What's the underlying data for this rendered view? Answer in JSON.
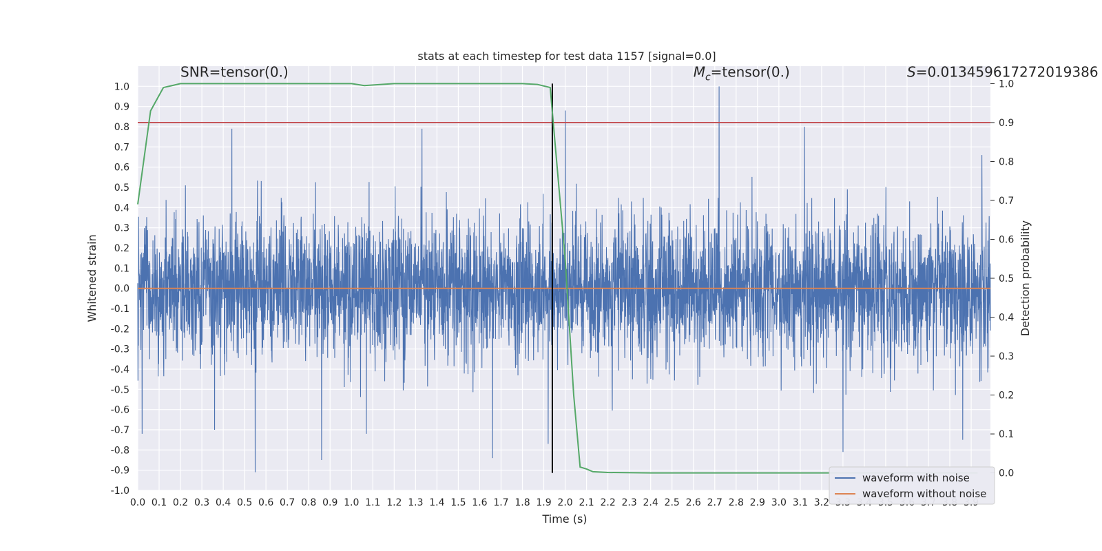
{
  "chart_data": {
    "type": "line",
    "title": "stats at each timestep for test data 1157 [signal=0.0]",
    "xlabel": "Time (s)",
    "ylabel_left": "Whitened strain",
    "ylabel_right": "Detection probability",
    "xlim": [
      0.0,
      3.99
    ],
    "ylim_left": [
      -1.0,
      1.1
    ],
    "ylim_right": [
      -0.045,
      1.045
    ],
    "grid": true,
    "x_ticks": [
      "0.0",
      "0.1",
      "0.2",
      "0.3",
      "0.4",
      "0.5",
      "0.6",
      "0.7",
      "0.8",
      "0.9",
      "1.0",
      "1.1",
      "1.2",
      "1.3",
      "1.4",
      "1.5",
      "1.6",
      "1.7",
      "1.8",
      "1.9",
      "2.0",
      "2.1",
      "2.2",
      "2.3",
      "2.4",
      "2.5",
      "2.6",
      "2.7",
      "2.8",
      "2.9",
      "3.0",
      "3.1",
      "3.2",
      "3.3",
      "3.4",
      "3.5",
      "3.6",
      "3.7",
      "3.8",
      "3.9"
    ],
    "y_left_ticks": [
      "-1.0",
      "-0.9",
      "-0.8",
      "-0.7",
      "-0.6",
      "-0.5",
      "-0.4",
      "-0.3",
      "-0.2",
      "-0.1",
      "0.0",
      "0.1",
      "0.2",
      "0.3",
      "0.4",
      "0.5",
      "0.6",
      "0.7",
      "0.8",
      "0.9",
      "1.0"
    ],
    "y_right_ticks": [
      "0.0",
      "0.1",
      "0.2",
      "0.3",
      "0.4",
      "0.5",
      "0.6",
      "0.7",
      "0.8",
      "0.9",
      "1.0"
    ],
    "series": [
      {
        "name": "waveform with noise",
        "axis": "left",
        "color": "#4c72b0",
        "kind": "noise",
        "samples": 4096,
        "peaks": [
          {
            "x": 0.44,
            "y": 0.79
          },
          {
            "x": 1.33,
            "y": 0.79
          },
          {
            "x": 2.0,
            "y": 0.88
          },
          {
            "x": 2.72,
            "y": 1.0
          },
          {
            "x": 3.12,
            "y": 0.8
          },
          {
            "x": 3.95,
            "y": 0.66
          },
          {
            "x": 0.55,
            "y": -0.91
          },
          {
            "x": 0.86,
            "y": -0.85
          },
          {
            "x": 1.66,
            "y": -0.84
          },
          {
            "x": 3.3,
            "y": -0.81
          },
          {
            "x": 3.86,
            "y": -0.75
          },
          {
            "x": 1.92,
            "y": -0.77
          },
          {
            "x": 0.02,
            "y": -0.72
          },
          {
            "x": 0.36,
            "y": -0.7
          },
          {
            "x": 1.07,
            "y": -0.72
          }
        ]
      },
      {
        "name": "waveform without noise",
        "axis": "left",
        "color": "#dd8452",
        "x": [
          0.0,
          3.99
        ],
        "y": [
          0.0,
          0.0
        ]
      },
      {
        "name": "detection probability",
        "axis": "right",
        "color": "#55a868",
        "x": [
          0.0,
          0.06,
          0.12,
          0.2,
          0.3,
          0.5,
          0.8,
          1.0,
          1.06,
          1.2,
          1.5,
          1.8,
          1.87,
          1.93,
          2.0,
          2.04,
          2.07,
          2.1,
          2.13,
          2.2,
          2.4,
          3.0,
          3.5,
          3.93
        ],
        "y": [
          0.69,
          0.93,
          0.99,
          1.0,
          1.0,
          1.0,
          1.0,
          1.0,
          0.995,
          1.0,
          1.0,
          1.0,
          0.998,
          0.99,
          0.55,
          0.2,
          0.015,
          0.01,
          0.003,
          0.001,
          0.0,
          0.0,
          0.0,
          0.0
        ]
      }
    ],
    "hlines": [
      {
        "axis": "right",
        "y": 0.9,
        "color": "#c44e52"
      }
    ],
    "vlines": [
      {
        "axis": "right",
        "x": 1.94,
        "ymin": 0.0,
        "ymax": 1.0,
        "color": "#000000"
      }
    ],
    "annotations": [
      {
        "text": "SNR=tensor(0.)",
        "x": 0.2,
        "y": 1.03
      },
      {
        "text": "M_c=tensor(0.)",
        "x": 2.6,
        "y": 1.03
      },
      {
        "text": "S=0.013459617272019386",
        "x": 3.6,
        "y": 1.03
      }
    ],
    "legend": {
      "position": "lower-right",
      "entries": [
        {
          "label": "waveform with noise",
          "color": "#4c72b0"
        },
        {
          "label": "waveform without noise",
          "color": "#dd8452"
        }
      ]
    },
    "colors": {
      "background": "#eaeaf2",
      "grid": "#ffffff"
    }
  }
}
